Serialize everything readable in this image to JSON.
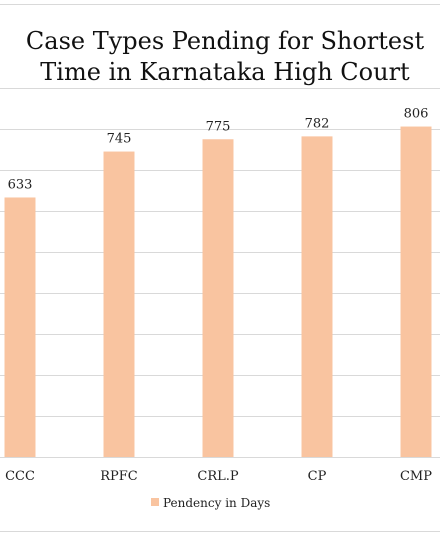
{
  "chart_data": {
    "type": "bar",
    "title": "Case Types Pending for Shortest Time in Karnataka High Court",
    "categories": [
      "CCC",
      "RPFC",
      "CRL.P",
      "CP",
      "CMP"
    ],
    "series": [
      {
        "name": "Pendency in Days",
        "values": [
          633,
          745,
          775,
          782,
          806
        ]
      }
    ],
    "ylim": [
      0,
      900
    ],
    "grid": true,
    "legend": "bottom",
    "data_labels": true,
    "colors": {
      "bar": "#f9c4a0",
      "grid": "#d9d9d9",
      "text": "#222222"
    }
  }
}
